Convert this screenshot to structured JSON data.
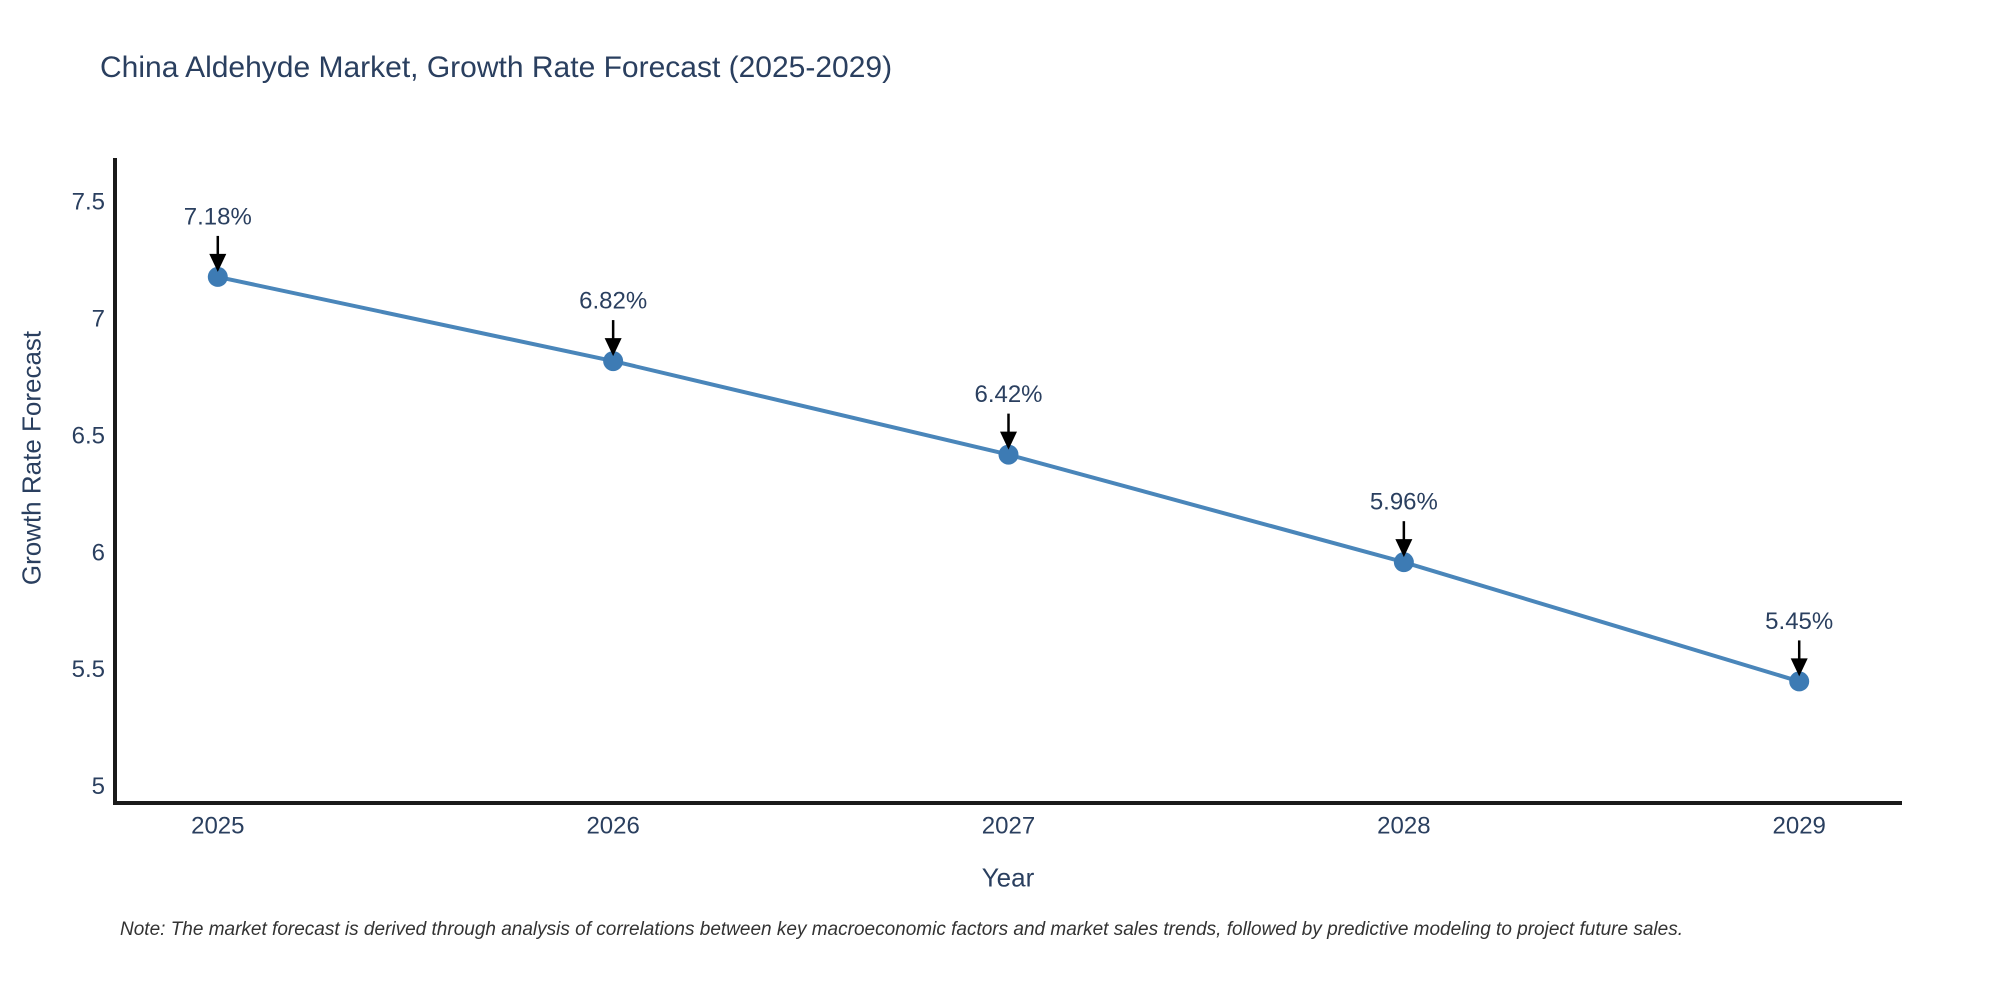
{
  "page": {
    "background_color": "#ffffff",
    "text_color": "#2a3f5f"
  },
  "chart_data": {
    "type": "line",
    "title": "China Aldehyde Market, Growth Rate Forecast (2025-2029)",
    "xlabel": "Year",
    "ylabel": "Growth Rate Forecast",
    "x": [
      2025,
      2026,
      2027,
      2028,
      2029
    ],
    "series": [
      {
        "name": "Growth Rate Forecast",
        "values": [
          7.18,
          6.82,
          6.42,
          5.96,
          5.45
        ]
      }
    ],
    "point_labels": [
      "7.18%",
      "6.82%",
      "6.42%",
      "5.96%",
      "5.45%"
    ],
    "xticks": [
      2025,
      2026,
      2027,
      2028,
      2029
    ],
    "yticks": [
      5,
      5.5,
      6,
      6.5,
      7,
      7.5
    ],
    "xlim": [
      2024.74,
      2029.26
    ],
    "ylim": [
      4.93,
      7.68
    ],
    "grid": false,
    "legend": false,
    "line_color": "#4a86ba",
    "marker_color": "#3d7bb4",
    "arrow_color": "#000000",
    "axis_color": "#1a1a1a",
    "note": "Note: The market forecast is derived through analysis of correlations between key macroeconomic factors and market sales trends, followed by predictive modeling to project future sales."
  }
}
